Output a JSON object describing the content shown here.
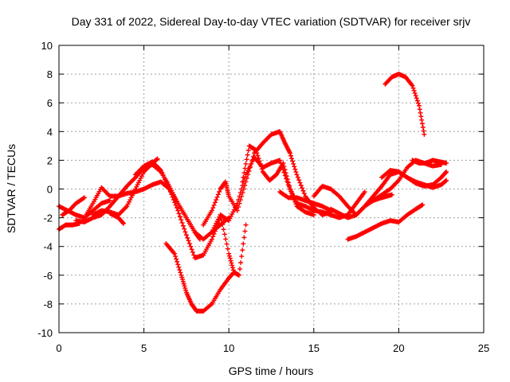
{
  "chart_data": {
    "type": "scatter",
    "title": "Day 331 of 2022, Sidereal Day-to-day VTEC variation (SDTVAR) for receiver srjv",
    "xlabel": "GPS time / hours",
    "ylabel": "SDTVAR / TECUs",
    "xlim": [
      0,
      25
    ],
    "ylim": [
      -10,
      10
    ],
    "xticks": [
      "0",
      "5",
      "10",
      "15",
      "20",
      "25"
    ],
    "yticks": [
      "-10",
      "-8",
      "-6",
      "-4",
      "-2",
      "0",
      "2",
      "4",
      "6",
      "8",
      "10"
    ],
    "grid": true,
    "marker": "plus",
    "color": "#ff0000",
    "series": [
      {
        "x": [
          0.0,
          0.5,
          1.0,
          1.5,
          2.0,
          2.5,
          3.0
        ],
        "y": [
          -1.2,
          -1.5,
          -1.8,
          -2.0,
          -1.5,
          -1.0,
          -0.8
        ]
      },
      {
        "x": [
          0.0,
          0.4,
          0.8,
          1.2
        ],
        "y": [
          -2.8,
          -2.5,
          -2.5,
          -2.4
        ]
      },
      {
        "x": [
          0.2,
          0.6,
          1.0,
          1.5
        ],
        "y": [
          -1.8,
          -1.5,
          -1.0,
          -0.6
        ]
      },
      {
        "x": [
          1.0,
          1.5,
          2.0,
          2.5,
          3.0,
          3.5,
          4.0,
          4.5,
          5.0,
          5.5,
          6.0,
          6.5,
          7.0,
          7.5,
          8.0,
          8.3
        ],
        "y": [
          -2.2,
          -2.3,
          -2.0,
          -1.8,
          -1.2,
          -0.5,
          0.2,
          0.8,
          1.5,
          1.7,
          1.2,
          0.2,
          -1.0,
          -2.0,
          -3.0,
          -3.5
        ]
      },
      {
        "x": [
          1.5,
          2.0,
          2.5,
          3.0,
          3.5,
          4.0,
          4.5,
          5.0,
          5.5,
          6.0,
          6.5,
          7.0,
          7.5,
          8.0,
          8.5,
          9.0,
          9.5,
          10.0
        ],
        "y": [
          -2.0,
          -1.0,
          0.1,
          -0.5,
          -0.5,
          -0.3,
          -0.2,
          0.0,
          0.3,
          0.5,
          0.0,
          -1.0,
          -2.0,
          -3.0,
          -3.5,
          -3.0,
          -2.5,
          -2.0
        ]
      },
      {
        "x": [
          2.0,
          2.5,
          3.0,
          3.5,
          4.0,
          4.5,
          5.0,
          5.5,
          5.8
        ],
        "y": [
          -1.8,
          -1.5,
          -1.6,
          -1.8,
          -1.2,
          0.0,
          1.2,
          1.8,
          2.1
        ]
      },
      {
        "x": [
          3.0,
          3.5,
          3.8
        ],
        "y": [
          -1.7,
          -2.0,
          -2.4
        ]
      },
      {
        "x": [
          4.5,
          5.0,
          5.5,
          6.0,
          6.5,
          7.0,
          7.5,
          8.0,
          8.5,
          9.0,
          9.5
        ],
        "y": [
          1.0,
          1.6,
          1.9,
          1.3,
          0.0,
          -1.5,
          -3.2,
          -4.8,
          -4.6,
          -3.5,
          -2.0
        ]
      },
      {
        "x": [
          6.3,
          6.8,
          7.2,
          7.5,
          7.8,
          8.1,
          8.5,
          9.0,
          9.5,
          10.0,
          10.3
        ],
        "y": [
          -3.8,
          -4.5,
          -6.0,
          -7.2,
          -8.0,
          -8.5,
          -8.5,
          -8.0,
          -7.0,
          -6.2,
          -5.8
        ]
      },
      {
        "x": [
          9.5,
          10.0,
          10.3,
          10.6,
          11.0
        ],
        "y": [
          -1.8,
          -4.5,
          -5.8,
          -6.0,
          -2.5
        ]
      },
      {
        "x": [
          8.5,
          9.0,
          9.5,
          9.8,
          10.0,
          10.5,
          11.0,
          11.5,
          12.0,
          12.5,
          13.0,
          13.3,
          13.6,
          14.0,
          14.5,
          15.0,
          15.5,
          16.0
        ],
        "y": [
          -2.5,
          -1.5,
          0.0,
          0.5,
          -0.5,
          -1.5,
          0.5,
          2.5,
          3.2,
          3.8,
          4.0,
          3.2,
          2.5,
          1.0,
          -0.5,
          -1.3,
          -1.8,
          -1.6
        ]
      },
      {
        "x": [
          9.0,
          9.5,
          10.0,
          10.5,
          11.0,
          11.5,
          12.0,
          12.5,
          13.0,
          13.5,
          14.0,
          14.5,
          15.0,
          15.5,
          16.0,
          16.5,
          17.0,
          17.5,
          18.0
        ],
        "y": [
          -3.0,
          -1.8,
          -2.2,
          -1.0,
          1.0,
          2.2,
          1.5,
          1.8,
          2.0,
          0.3,
          -1.0,
          -1.2,
          -1.5,
          -1.6,
          -1.8,
          -2.0,
          -1.8,
          -1.0,
          -0.2
        ]
      },
      {
        "x": [
          10.8,
          11.2,
          11.6,
          12.0,
          12.4,
          12.8,
          13.2,
          13.6,
          14.0,
          14.5,
          15.0
        ],
        "y": [
          0.5,
          3.0,
          2.7,
          1.2,
          0.6,
          1.0,
          1.8,
          0.0,
          -1.2,
          -1.6,
          -1.8
        ]
      },
      {
        "x": [
          13.0,
          13.5,
          14.0,
          14.5,
          15.0,
          15.5,
          16.0
        ],
        "y": [
          -0.2,
          -0.6,
          -0.6,
          -0.8,
          -1.0,
          -1.2,
          -1.5
        ]
      },
      {
        "x": [
          15.0,
          15.5,
          16.0,
          16.5,
          17.0,
          17.5,
          18.0,
          18.5,
          19.0,
          19.5,
          20.0,
          20.5,
          21.0,
          21.5,
          22.0,
          22.5,
          22.8
        ],
        "y": [
          -0.5,
          0.2,
          0.0,
          -0.5,
          -1.2,
          -1.8,
          -1.2,
          -0.5,
          0.2,
          1.0,
          1.2,
          0.8,
          0.4,
          0.2,
          0.3,
          0.8,
          1.2
        ]
      },
      {
        "x": [
          16.0,
          16.5,
          17.0,
          17.5,
          18.0,
          18.5,
          19.0,
          19.5,
          20.0,
          20.5,
          21.0,
          21.5,
          22.0,
          22.5
        ],
        "y": [
          -1.4,
          -1.7,
          -2.0,
          -1.8,
          -1.2,
          -0.8,
          -0.4,
          0.0,
          0.6,
          1.5,
          2.0,
          1.8,
          1.6,
          1.7
        ]
      },
      {
        "x": [
          17.0,
          17.5,
          18.0,
          18.5,
          19.0,
          19.5,
          20.0,
          20.5,
          21.0,
          21.4
        ],
        "y": [
          -3.5,
          -3.3,
          -3.0,
          -2.7,
          -2.4,
          -2.2,
          -2.3,
          -1.8,
          -1.4,
          -1.1
        ]
      },
      {
        "x": [
          18.5,
          19.0,
          19.3,
          19.6
        ],
        "y": [
          -0.8,
          -0.6,
          -0.5,
          -0.4
        ]
      },
      {
        "x": [
          19.2,
          19.6,
          20.0,
          20.4,
          20.8,
          21.2,
          21.5
        ],
        "y": [
          7.3,
          7.8,
          8.0,
          7.8,
          7.2,
          5.8,
          3.8
        ]
      },
      {
        "x": [
          19.0,
          19.5,
          20.0,
          20.5,
          21.0,
          21.5,
          22.0,
          22.5,
          22.8
        ],
        "y": [
          0.8,
          1.3,
          1.2,
          0.8,
          0.5,
          0.3,
          0.1,
          0.3,
          0.6
        ]
      },
      {
        "x": [
          20.8,
          21.2,
          21.6,
          22.0,
          22.4,
          22.8
        ],
        "y": [
          2.0,
          1.8,
          1.8,
          2.0,
          1.9,
          1.8
        ]
      }
    ]
  }
}
